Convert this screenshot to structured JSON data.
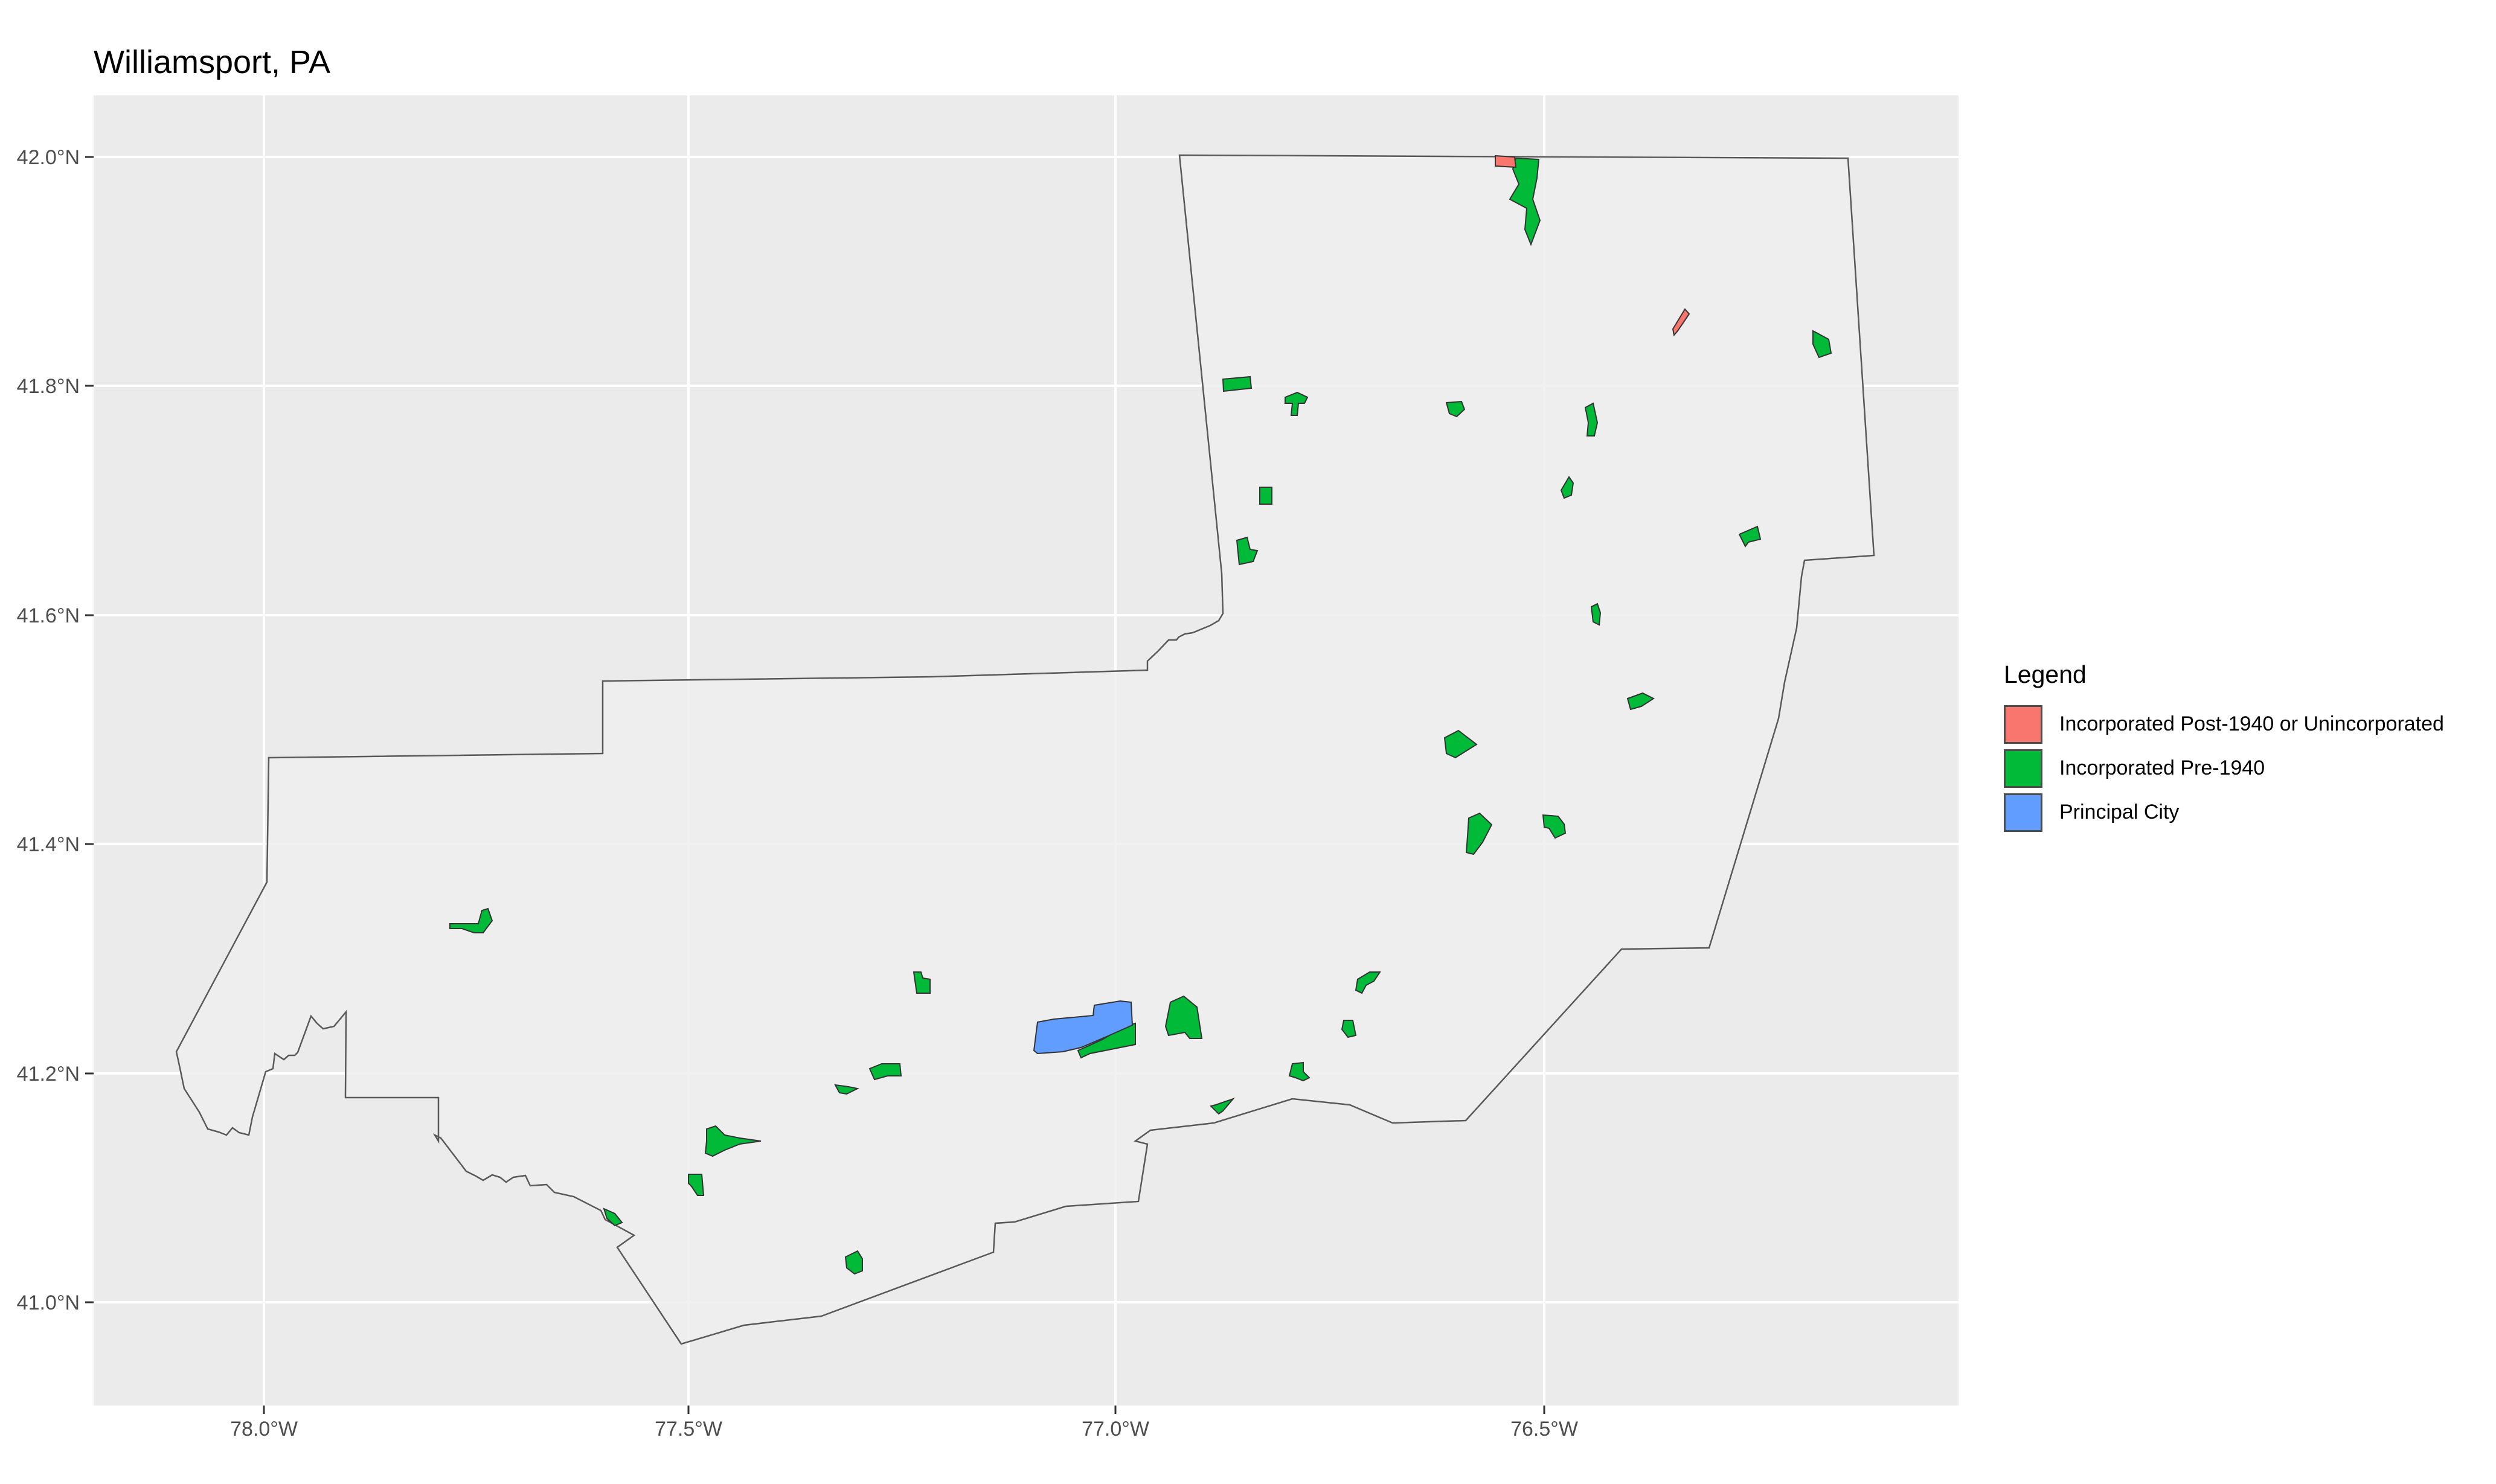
{
  "title": "Williamsport, PA",
  "legend": {
    "title": "Legend",
    "items": [
      {
        "label": "Incorporated Post-1940 or Unincorporated",
        "color": "#F8766D"
      },
      {
        "label": "Incorporated Pre-1940",
        "color": "#00BA38"
      },
      {
        "label": "Principal City",
        "color": "#619CFF"
      }
    ]
  },
  "axes": {
    "x_ticks": [
      "78.0°W",
      "77.5°W",
      "77.0°W",
      "76.5°W"
    ],
    "y_ticks": [
      "42.0°N",
      "41.8°N",
      "41.6°N",
      "41.4°N",
      "41.2°N",
      "41.0°N"
    ]
  },
  "colors": {
    "panel_background": "#EBEBEB",
    "county_fill": "#EEEEEE",
    "grid": "#FFFFFF",
    "outline": "#595959"
  }
}
